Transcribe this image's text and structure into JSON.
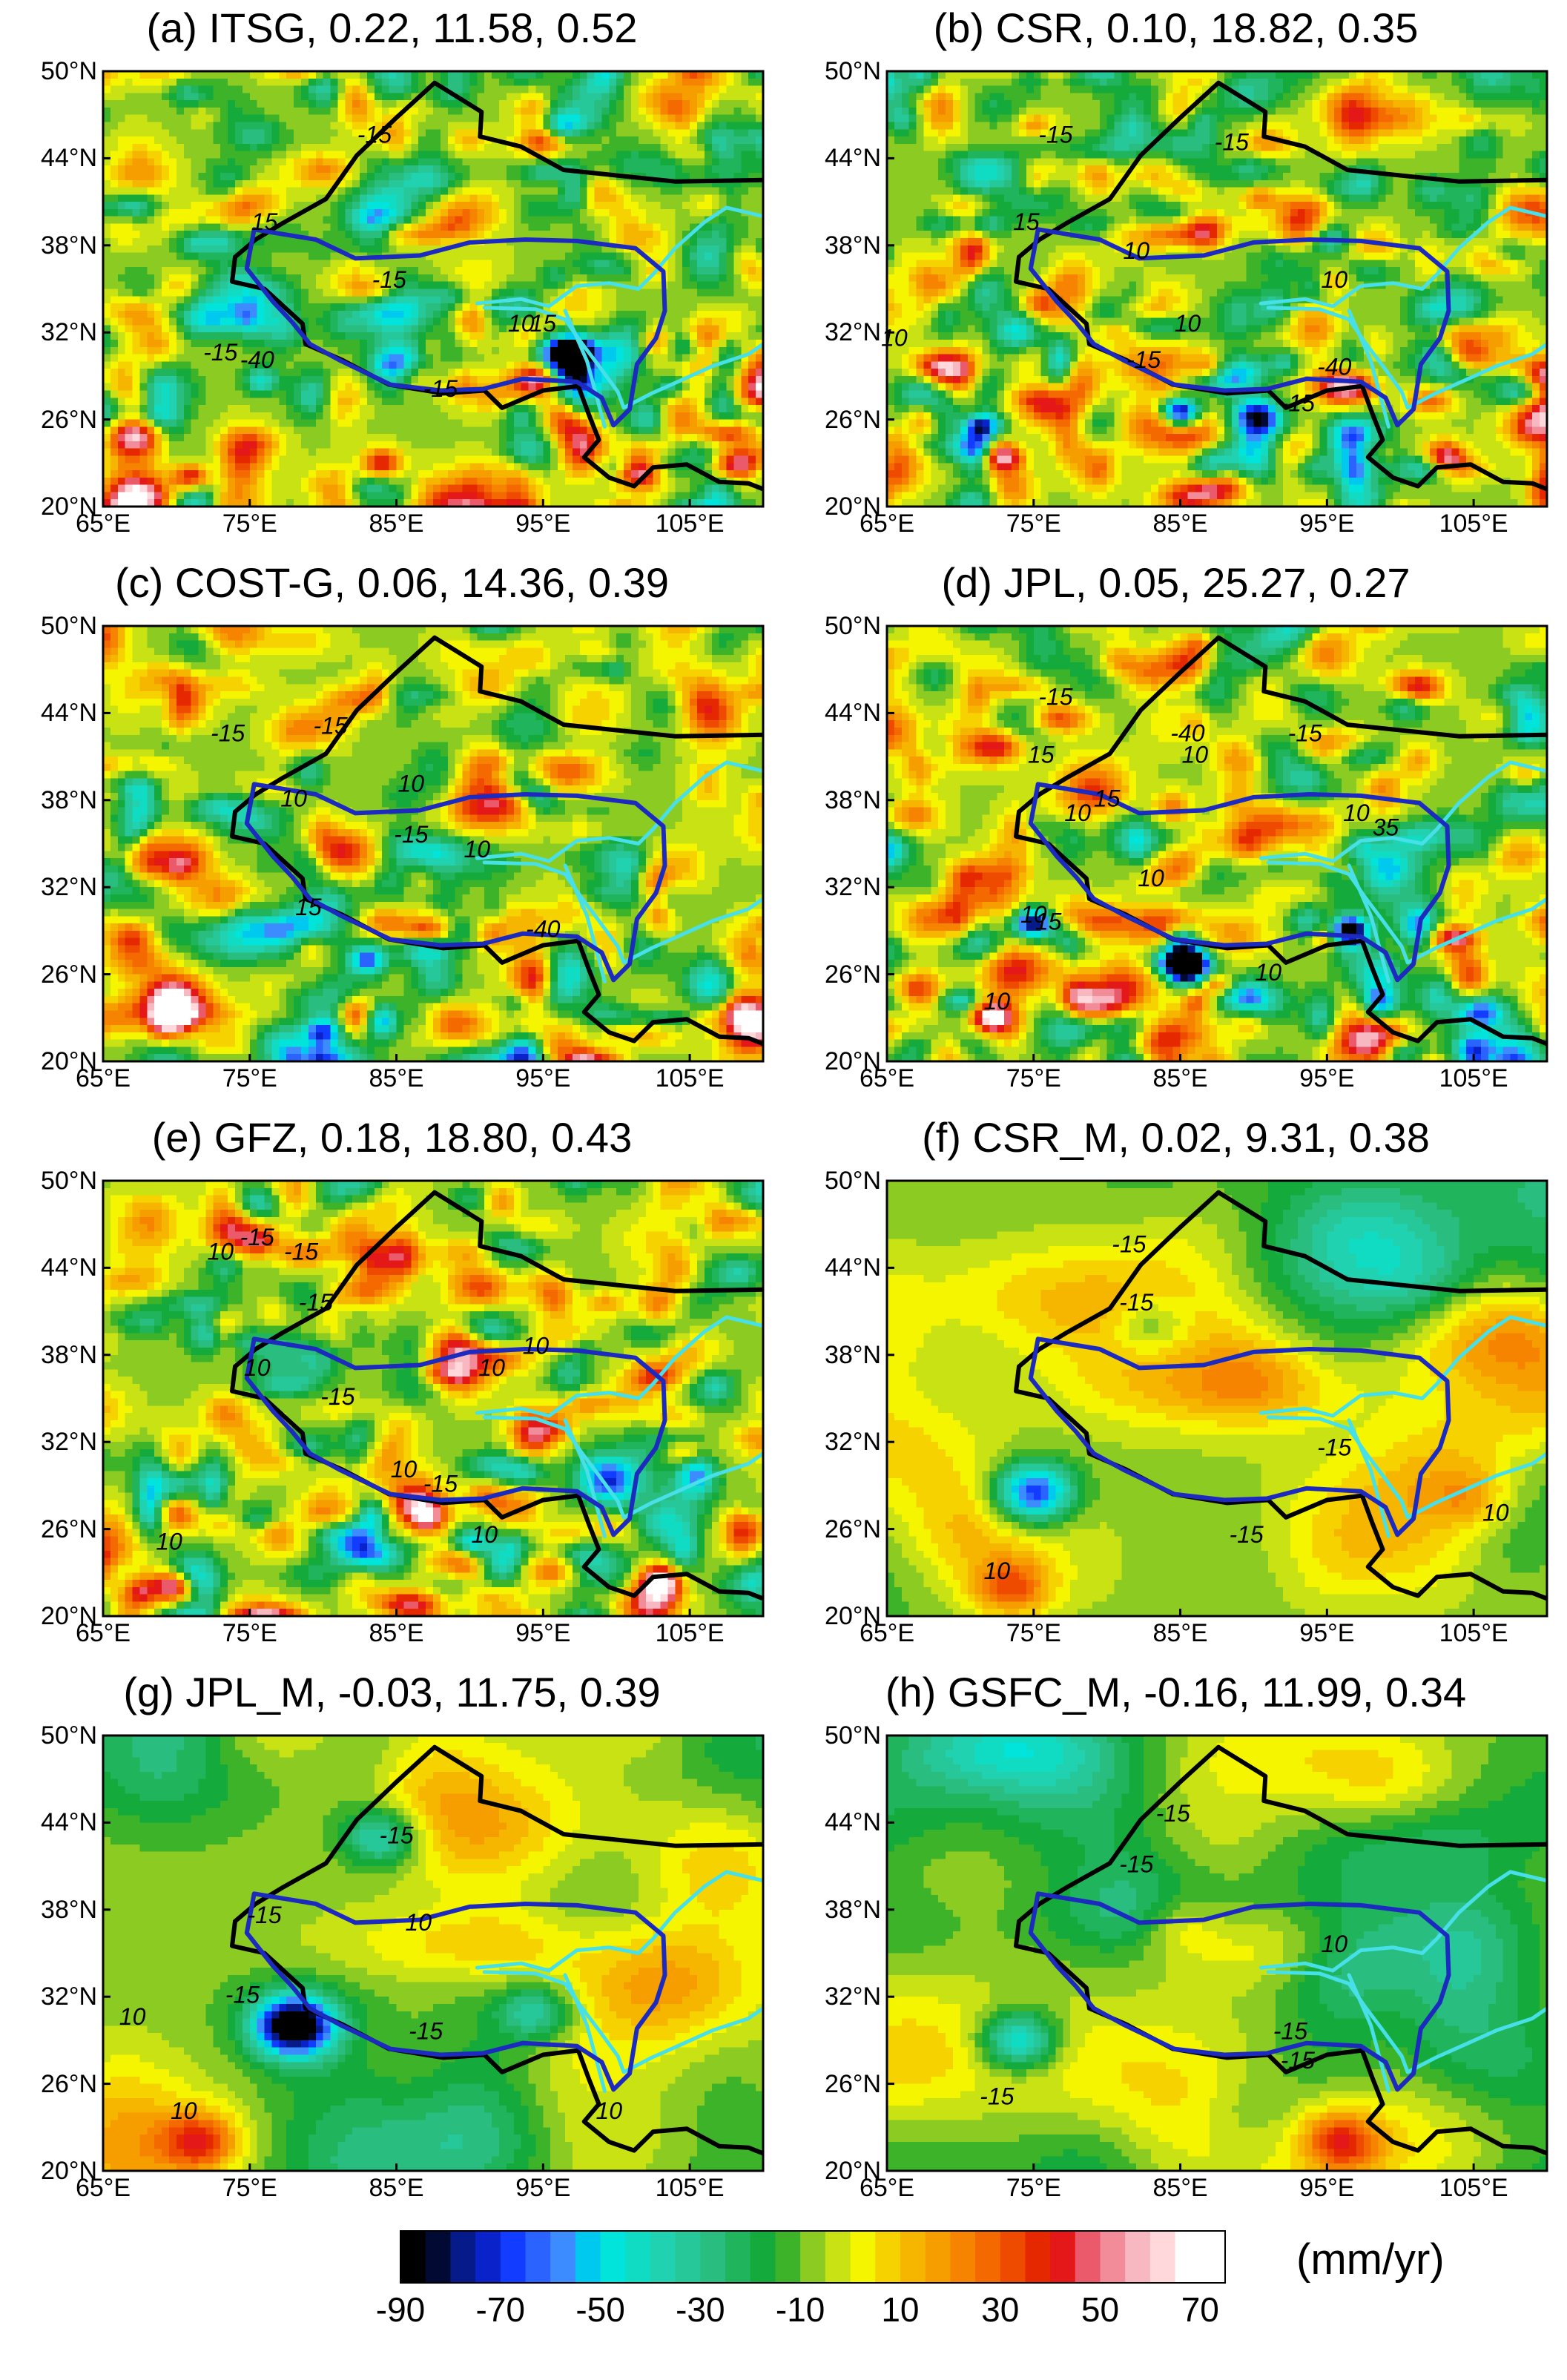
{
  "axes": {
    "y_ticks": [
      "50°N",
      "44°N",
      "38°N",
      "32°N",
      "26°N",
      "20°N"
    ],
    "x_ticks": [
      "65°E",
      "75°E",
      "85°E",
      "95°E",
      "105°E"
    ]
  },
  "panels": [
    {
      "id": "a",
      "title": "(a) ITSG, 0.22, 11.58, 0.52",
      "style": "noisy",
      "seed": 11,
      "contour_labels": [
        {
          "text": "-15",
          "lon": 83.5,
          "lat": 45.5
        },
        {
          "text": "15",
          "lon": 76,
          "lat": 39.5
        },
        {
          "text": "-15",
          "lon": 84.5,
          "lat": 35.5
        },
        {
          "text": "-15",
          "lon": 73,
          "lat": 30.5
        },
        {
          "text": "-40",
          "lon": 75.5,
          "lat": 30
        },
        {
          "text": "-15",
          "lon": 88,
          "lat": 28
        },
        {
          "text": "10",
          "lon": 93.5,
          "lat": 32.5
        },
        {
          "text": "15",
          "lon": 95,
          "lat": 32.5
        }
      ],
      "features": [
        {
          "lon": 97,
          "lat": 30.5,
          "v": -60
        },
        {
          "lon": 71,
          "lat": 22,
          "v": 70
        },
        {
          "lon": 84,
          "lat": 23,
          "v": 50
        },
        {
          "lon": 101.5,
          "lat": 22.5,
          "v": 55
        }
      ]
    },
    {
      "id": "b",
      "title": "(b) CSR, 0.10, 18.82, 0.35",
      "style": "noisy",
      "seed": 23,
      "contour_labels": [
        {
          "text": "-15",
          "lon": 76.5,
          "lat": 45.5
        },
        {
          "text": "-15",
          "lon": 88.5,
          "lat": 45
        },
        {
          "text": "15",
          "lon": 74.5,
          "lat": 39.5
        },
        {
          "text": "10",
          "lon": 82,
          "lat": 37.5
        },
        {
          "text": "10",
          "lon": 95.5,
          "lat": 35.5
        },
        {
          "text": "10",
          "lon": 65.5,
          "lat": 31.5
        },
        {
          "text": "10",
          "lon": 85.5,
          "lat": 32.5
        },
        {
          "text": "-15",
          "lon": 82.5,
          "lat": 30
        },
        {
          "text": "-40",
          "lon": 95.5,
          "lat": 29.5
        },
        {
          "text": "-15",
          "lon": 93,
          "lat": 27
        }
      ],
      "features": [
        {
          "lon": 71.5,
          "lat": 25.5,
          "v": -90
        },
        {
          "lon": 85,
          "lat": 26.5,
          "v": -90
        },
        {
          "lon": 73,
          "lat": 23.5,
          "v": 70
        },
        {
          "lon": 103,
          "lat": 23.5,
          "v": 55
        }
      ]
    },
    {
      "id": "c",
      "title": "(c) COST-G, 0.06, 14.36, 0.39",
      "style": "noisy",
      "seed": 37,
      "contour_labels": [
        {
          "text": "-15",
          "lon": 73.5,
          "lat": 42.5
        },
        {
          "text": "-15",
          "lon": 80.5,
          "lat": 43
        },
        {
          "text": "10",
          "lon": 78,
          "lat": 38
        },
        {
          "text": "10",
          "lon": 86,
          "lat": 39
        },
        {
          "text": "-15",
          "lon": 86,
          "lat": 35.5
        },
        {
          "text": "10",
          "lon": 90.5,
          "lat": 34.5
        },
        {
          "text": "15",
          "lon": 79,
          "lat": 30.5
        },
        {
          "text": "-40",
          "lon": 95,
          "lat": 29
        }
      ],
      "features": [
        {
          "lon": 83,
          "lat": 27,
          "v": -60
        },
        {
          "lon": 80,
          "lat": 22,
          "v": -60
        },
        {
          "lon": 70,
          "lat": 23,
          "v": 65
        }
      ]
    },
    {
      "id": "d",
      "title": "(d) JPL, 0.05, 25.27, 0.27",
      "style": "noisy",
      "seed": 51,
      "contour_labels": [
        {
          "text": "-15",
          "lon": 76.5,
          "lat": 45
        },
        {
          "text": "-40",
          "lon": 85.5,
          "lat": 42.5
        },
        {
          "text": "-15",
          "lon": 93.5,
          "lat": 42.5
        },
        {
          "text": "15",
          "lon": 75.5,
          "lat": 41
        },
        {
          "text": "10",
          "lon": 86,
          "lat": 41
        },
        {
          "text": "10",
          "lon": 78,
          "lat": 37
        },
        {
          "text": "15",
          "lon": 80,
          "lat": 38
        },
        {
          "text": "10",
          "lon": 97,
          "lat": 37
        },
        {
          "text": "35",
          "lon": 99,
          "lat": 36
        },
        {
          "text": "10",
          "lon": 83,
          "lat": 32.5
        },
        {
          "text": "10",
          "lon": 75,
          "lat": 30
        },
        {
          "text": "15",
          "lon": 76,
          "lat": 29.5
        },
        {
          "text": "10",
          "lon": 72.5,
          "lat": 24
        },
        {
          "text": "10",
          "lon": 91,
          "lat": 26
        }
      ],
      "features": [
        {
          "lon": 75,
          "lat": 29.5,
          "v": -80
        },
        {
          "lon": 96.5,
          "lat": 29,
          "v": -90
        },
        {
          "lon": 85.5,
          "lat": 26.5,
          "v": -90
        },
        {
          "lon": 72,
          "lat": 23,
          "v": 65
        }
      ]
    },
    {
      "id": "e",
      "title": "(e) GFZ, 0.18,  18.80, 0.43",
      "style": "noisy",
      "seed": 67,
      "contour_labels": [
        {
          "text": "-15",
          "lon": 75.5,
          "lat": 46
        },
        {
          "text": "10",
          "lon": 73,
          "lat": 45
        },
        {
          "text": "-15",
          "lon": 78.5,
          "lat": 45
        },
        {
          "text": "-15",
          "lon": 79.5,
          "lat": 41.5
        },
        {
          "text": "10",
          "lon": 75.5,
          "lat": 37
        },
        {
          "text": "-15",
          "lon": 81,
          "lat": 35
        },
        {
          "text": "10",
          "lon": 91.5,
          "lat": 37
        },
        {
          "text": "10",
          "lon": 94.5,
          "lat": 38.5
        },
        {
          "text": "10",
          "lon": 85.5,
          "lat": 30
        },
        {
          "text": "-15",
          "lon": 88,
          "lat": 29
        },
        {
          "text": "10",
          "lon": 91,
          "lat": 25.5
        },
        {
          "text": "10",
          "lon": 69.5,
          "lat": 25
        }
      ],
      "features": [
        {
          "lon": 90,
          "lat": 25,
          "v": -55
        },
        {
          "lon": 70,
          "lat": 22,
          "v": 70
        },
        {
          "lon": 103,
          "lat": 22.5,
          "v": 55
        }
      ]
    },
    {
      "id": "f",
      "title": "(f) CSR_M, 0.02,  9.31, 0.38",
      "style": "smooth",
      "seed": 79,
      "contour_labels": [
        {
          "text": "-15",
          "lon": 81.5,
          "lat": 45.5
        },
        {
          "text": "-15",
          "lon": 82,
          "lat": 41.5
        },
        {
          "text": "-15",
          "lon": 95.5,
          "lat": 31.5
        },
        {
          "text": "-15",
          "lon": 89.5,
          "lat": 25.5
        },
        {
          "text": "10",
          "lon": 72.5,
          "lat": 23
        },
        {
          "text": "10",
          "lon": 106.5,
          "lat": 27
        }
      ],
      "features": [
        {
          "lon": 75,
          "lat": 28.5,
          "v": -65
        },
        {
          "lon": 73.5,
          "lat": 22,
          "v": 35
        },
        {
          "lon": 105,
          "lat": 28,
          "v": 15
        },
        {
          "lon": 83,
          "lat": 40,
          "v": -20
        }
      ]
    },
    {
      "id": "g",
      "title": "(g) JPL_M, -0.03, 11.75, 0.39",
      "style": "smooth",
      "seed": 83,
      "contour_labels": [
        {
          "text": "-15",
          "lon": 85,
          "lat": 43
        },
        {
          "text": "-15",
          "lon": 76,
          "lat": 37.5
        },
        {
          "text": "10",
          "lon": 86.5,
          "lat": 37
        },
        {
          "text": "-15",
          "lon": 74.5,
          "lat": 32
        },
        {
          "text": "10",
          "lon": 67,
          "lat": 30.5
        },
        {
          "text": "-15",
          "lon": 87,
          "lat": 29.5
        },
        {
          "text": "10",
          "lon": 70.5,
          "lat": 24
        },
        {
          "text": "10",
          "lon": 99.5,
          "lat": 24
        }
      ],
      "features": [
        {
          "lon": 78,
          "lat": 30,
          "v": -95
        },
        {
          "lon": 71.5,
          "lat": 22,
          "v": 40
        },
        {
          "lon": 84,
          "lat": 43,
          "v": -35
        },
        {
          "lon": 94.5,
          "lat": 31,
          "v": -30
        }
      ]
    },
    {
      "id": "h",
      "title": "(h) GSFC_M, -0.16, 11.99, 0.34",
      "style": "smooth",
      "seed": 97,
      "contour_labels": [
        {
          "text": "-15",
          "lon": 84.5,
          "lat": 44.5
        },
        {
          "text": "-15",
          "lon": 82,
          "lat": 41
        },
        {
          "text": "10",
          "lon": 95.5,
          "lat": 35.5
        },
        {
          "text": "-15",
          "lon": 92.5,
          "lat": 29.5
        },
        {
          "text": "-15",
          "lon": 93,
          "lat": 27.5
        },
        {
          "text": "-15",
          "lon": 72.5,
          "lat": 25
        }
      ],
      "features": [
        {
          "lon": 74,
          "lat": 29,
          "v": -45
        },
        {
          "lon": 96,
          "lat": 22,
          "v": 40
        },
        {
          "lon": 85,
          "lat": 37,
          "v": 15
        }
      ]
    }
  ],
  "colorbar": {
    "unit": "(mm/yr)",
    "min": -90,
    "max": 75,
    "step": 5,
    "tick_labels": [
      "-90",
      "-70",
      "-50",
      "-30",
      "-10",
      "10",
      "30",
      "50",
      "70"
    ],
    "colors": [
      "#000000",
      "#020a33",
      "#071a8a",
      "#0a22c9",
      "#123cff",
      "#2a63ff",
      "#3c8cff",
      "#00c9ef",
      "#00e4dc",
      "#10dcc4",
      "#20d2b0",
      "#26c89a",
      "#29be80",
      "#20b45c",
      "#14aa3c",
      "#3db32a",
      "#8ccc22",
      "#c8e214",
      "#f6f500",
      "#f6d300",
      "#f6b600",
      "#f69e00",
      "#f68400",
      "#f46a00",
      "#ee4a00",
      "#e62800",
      "#e41818",
      "#ea5a6a",
      "#f28c98",
      "#f8b8c2",
      "#ffd8dc",
      "#ffffff",
      "#ffffff"
    ]
  },
  "colors": {
    "tibet_outline": "#1c2ac0",
    "boundary": "#000000",
    "rivers": "#47e0e8"
  }
}
